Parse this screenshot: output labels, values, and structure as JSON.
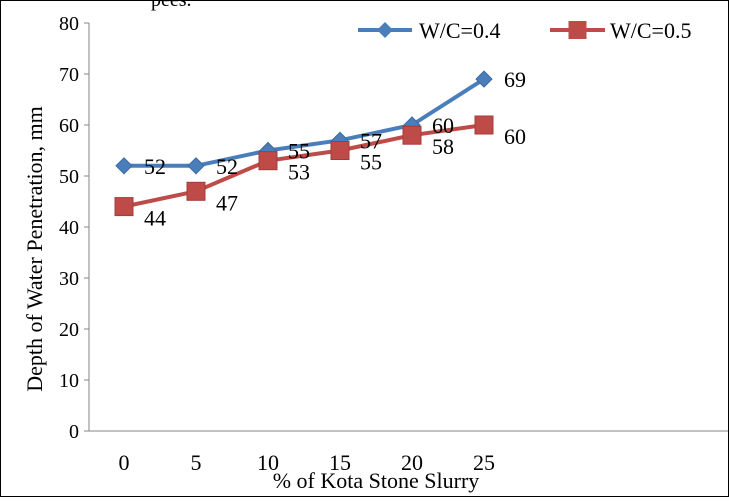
{
  "caption_fragment": "pees.",
  "chart_data": {
    "type": "line",
    "categories": [
      "0",
      "5",
      "10",
      "15",
      "20",
      "25"
    ],
    "xlabel": "% of Kota Stone Slurry",
    "ylabel": "Depth of Water Penetration, mm",
    "ylim": [
      0,
      80
    ],
    "yticks": [
      0,
      10,
      20,
      30,
      40,
      50,
      60,
      70,
      80
    ],
    "grid": false,
    "legend_position": "top-right",
    "series": [
      {
        "name": "W/C=0.4",
        "values": [
          52,
          52,
          55,
          57,
          60,
          69
        ],
        "color": "#4a7ebb",
        "marker": "diamond"
      },
      {
        "name": "W/C=0.5",
        "values": [
          44,
          47,
          53,
          55,
          58,
          60
        ],
        "color": "#be4b48",
        "marker": "square"
      }
    ]
  }
}
